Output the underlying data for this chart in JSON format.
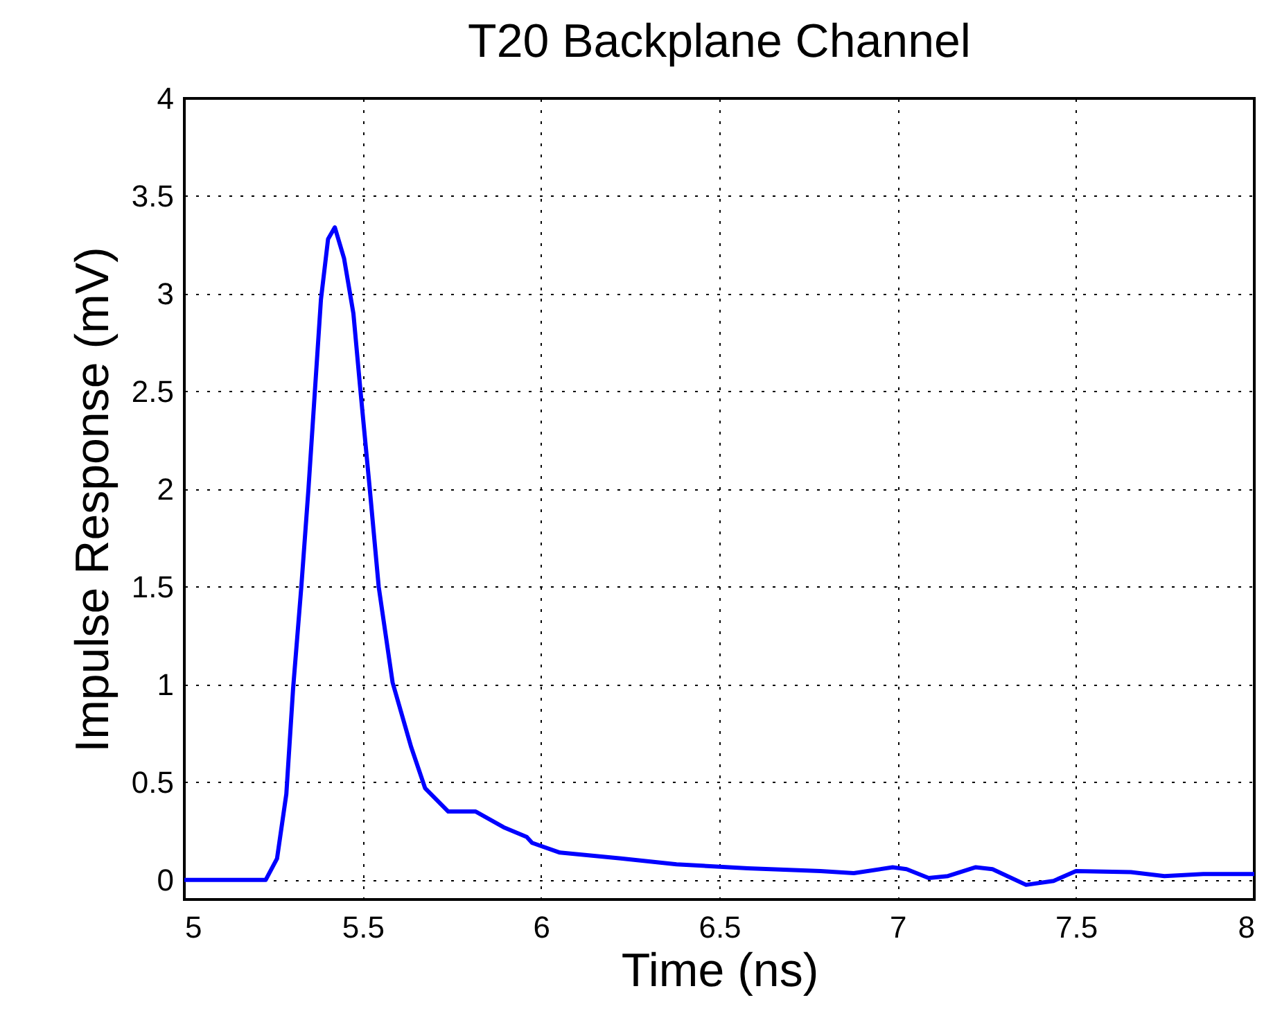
{
  "chart_data": {
    "type": "line",
    "title": "T20 Backplane Channel",
    "xlabel": "Time (ns)",
    "ylabel": "Impulse Response (mV)",
    "x": [
      5,
      5.228,
      5.26,
      5.286,
      5.305,
      5.328,
      5.348,
      5.366,
      5.383,
      5.403,
      5.422,
      5.448,
      5.474,
      5.493,
      5.52,
      5.545,
      5.584,
      5.636,
      5.675,
      5.74,
      5.817,
      5.895,
      5.96,
      5.975,
      6.053,
      6.224,
      6.38,
      6.58,
      6.784,
      6.877,
      6.986,
      7.025,
      7.087,
      7.141,
      7.219,
      7.266,
      7.36,
      7.437,
      7.5,
      7.654,
      7.748,
      7.857,
      7.965,
      8
    ],
    "series": [
      {
        "color": "#0000ff",
        "values": [
          0,
          0,
          0.11,
          0.44,
          0.98,
          1.5,
          2.0,
          2.5,
          2.97,
          3.28,
          3.34,
          3.18,
          2.9,
          2.52,
          2.0,
          1.5,
          1.01,
          0.68,
          0.47,
          0.35,
          0.35,
          0.27,
          0.22,
          0.19,
          0.14,
          0.11,
          0.08,
          0.06,
          0.045,
          0.035,
          0.065,
          0.055,
          0.01,
          0.02,
          0.065,
          0.055,
          -0.025,
          -0.005,
          0.045,
          0.04,
          0.02,
          0.03,
          0.03,
          0.03
        ]
      }
    ],
    "xlim": [
      5,
      8
    ],
    "ylim": [
      -0.1,
      4
    ],
    "xticks": [
      5,
      5.5,
      6,
      6.5,
      7,
      7.5,
      8
    ],
    "yticks": [
      0,
      0.5,
      1,
      1.5,
      2,
      2.5,
      3,
      3.5,
      4
    ],
    "grid": true,
    "marker": "none",
    "line_style": "solid"
  }
}
